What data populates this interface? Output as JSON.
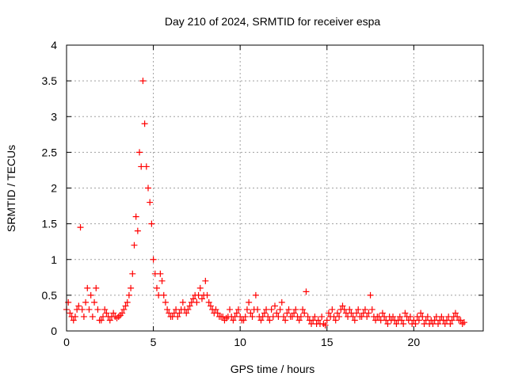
{
  "chart_data": {
    "type": "scatter",
    "title": "Day 210 of 2024, SRMTID for receiver espa",
    "xlabel": "GPS time / hours",
    "ylabel": "SRMTID / TECUs",
    "xlim": [
      0,
      24
    ],
    "ylim": [
      0,
      4
    ],
    "xticks": [
      "0",
      "5",
      "10",
      "15",
      "20"
    ],
    "xtick_values": [
      0,
      5,
      10,
      15,
      20
    ],
    "yticks": [
      "0",
      "0.5",
      "1",
      "1.5",
      "2",
      "2.5",
      "3",
      "3.5",
      "4"
    ],
    "ytick_values": [
      0,
      0.5,
      1,
      1.5,
      2,
      2.5,
      3,
      3.5,
      4
    ],
    "grid": true,
    "marker": "+",
    "color": "#ff0000",
    "x_start": 0,
    "x_step": 0.1,
    "series": [
      {
        "name": "SRMTID",
        "values": [
          0.3,
          0.4,
          0.25,
          0.2,
          0.15,
          0.2,
          0.3,
          0.35,
          1.45,
          0.3,
          0.2,
          0.4,
          0.6,
          0.3,
          0.5,
          0.2,
          0.4,
          0.6,
          0.3,
          0.15,
          0.15,
          0.2,
          0.3,
          0.25,
          0.2,
          0.15,
          0.2,
          0.25,
          0.2,
          0.18,
          0.2,
          0.22,
          0.25,
          0.3,
          0.35,
          0.4,
          0.5,
          0.6,
          0.8,
          1.2,
          1.6,
          1.4,
          2.5,
          2.3,
          3.5,
          2.9,
          2.3,
          2.0,
          1.8,
          1.5,
          1.0,
          0.8,
          0.6,
          0.5,
          0.8,
          0.7,
          0.5,
          0.4,
          0.3,
          0.25,
          0.2,
          0.2,
          0.25,
          0.3,
          0.2,
          0.25,
          0.3,
          0.4,
          0.3,
          0.25,
          0.3,
          0.35,
          0.4,
          0.45,
          0.5,
          0.4,
          0.5,
          0.6,
          0.45,
          0.5,
          0.7,
          0.5,
          0.4,
          0.35,
          0.3,
          0.25,
          0.3,
          0.25,
          0.2,
          0.2,
          0.2,
          0.15,
          0.18,
          0.2,
          0.3,
          0.2,
          0.15,
          0.2,
          0.25,
          0.3,
          0.2,
          0.15,
          0.15,
          0.2,
          0.3,
          0.4,
          0.25,
          0.2,
          0.3,
          0.5,
          0.3,
          0.2,
          0.15,
          0.2,
          0.25,
          0.3,
          0.2,
          0.15,
          0.3,
          0.2,
          0.35,
          0.25,
          0.2,
          0.3,
          0.4,
          0.2,
          0.15,
          0.25,
          0.3,
          0.2,
          0.2,
          0.25,
          0.3,
          0.2,
          0.15,
          0.2,
          0.3,
          0.25,
          0.55,
          0.2,
          0.15,
          0.1,
          0.15,
          0.2,
          0.1,
          0.15,
          0.1,
          0.2,
          0.1,
          0.08,
          0.15,
          0.25,
          0.2,
          0.3,
          0.2,
          0.15,
          0.25,
          0.2,
          0.3,
          0.35,
          0.3,
          0.25,
          0.2,
          0.3,
          0.25,
          0.2,
          0.15,
          0.25,
          0.3,
          0.2,
          0.2,
          0.25,
          0.3,
          0.2,
          0.25,
          0.5,
          0.3,
          0.2,
          0.15,
          0.2,
          0.2,
          0.15,
          0.25,
          0.2,
          0.15,
          0.1,
          0.2,
          0.15,
          0.2,
          0.15,
          0.1,
          0.15,
          0.2,
          0.15,
          0.1,
          0.25,
          0.2,
          0.15,
          0.2,
          0.1,
          0.15,
          0.1,
          0.2,
          0.15,
          0.25,
          0.2,
          0.1,
          0.15,
          0.2,
          0.1,
          0.15,
          0.1,
          0.15,
          0.2,
          0.1,
          0.15,
          0.2,
          0.15,
          0.1,
          0.15,
          0.2,
          0.1,
          0.15,
          0.2,
          0.25,
          0.2,
          0.15,
          0.15,
          0.1,
          0.12
        ]
      }
    ]
  }
}
